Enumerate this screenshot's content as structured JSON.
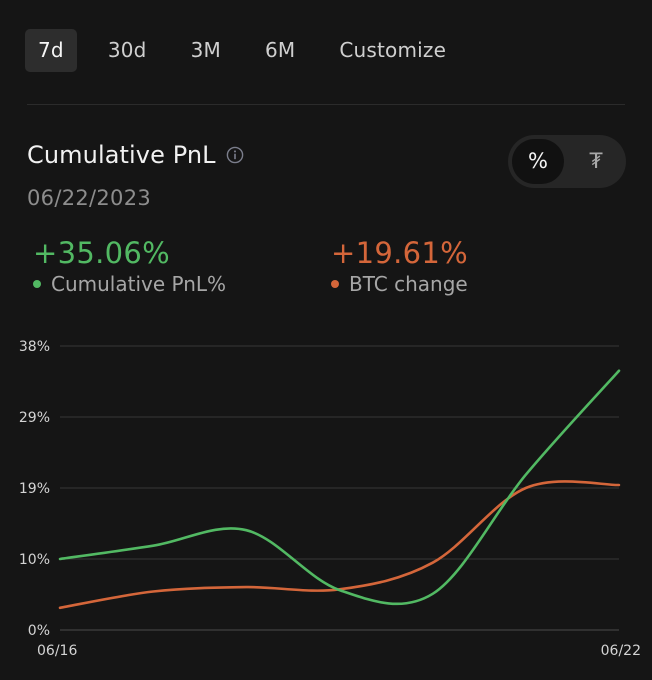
{
  "tabs": [
    {
      "label": "7d",
      "active": true
    },
    {
      "label": "30d",
      "active": false
    },
    {
      "label": "3M",
      "active": false
    },
    {
      "label": "6M",
      "active": false
    },
    {
      "label": "Customize",
      "active": false
    }
  ],
  "card": {
    "title": "Cumulative PnL",
    "info_icon": "info-icon",
    "date": "06/22/2023",
    "toggle": {
      "percent_label": "%",
      "usdt_label": "₮",
      "selected": "percent"
    }
  },
  "stats": {
    "pnl": {
      "value": "+35.06%",
      "label": "Cumulative PnL%",
      "color": "#52b963"
    },
    "btc": {
      "value": "+19.61%",
      "label": "BTC change",
      "color": "#d4663a"
    }
  },
  "chart_data": {
    "type": "line",
    "x": [
      "06/16",
      "06/17",
      "06/18",
      "06/19",
      "06/20",
      "06/21",
      "06/22"
    ],
    "xtick_labels": [
      "06/16",
      "06/22"
    ],
    "ytick_labels": [
      "0%",
      "10%",
      "19%",
      "29%",
      "38%"
    ],
    "yticks": [
      0,
      9.6,
      19.2,
      28.8,
      38.4
    ],
    "ylim": [
      0,
      38.4
    ],
    "grid": true,
    "series": [
      {
        "name": "Cumulative PnL%",
        "color": "#52b963",
        "values": [
          9.6,
          11.4,
          13.5,
          5.4,
          4.9,
          21.0,
          35.06
        ]
      },
      {
        "name": "BTC change",
        "color": "#d4663a",
        "values": [
          3.0,
          5.2,
          5.8,
          5.5,
          9.1,
          19.2,
          19.61
        ]
      }
    ]
  }
}
